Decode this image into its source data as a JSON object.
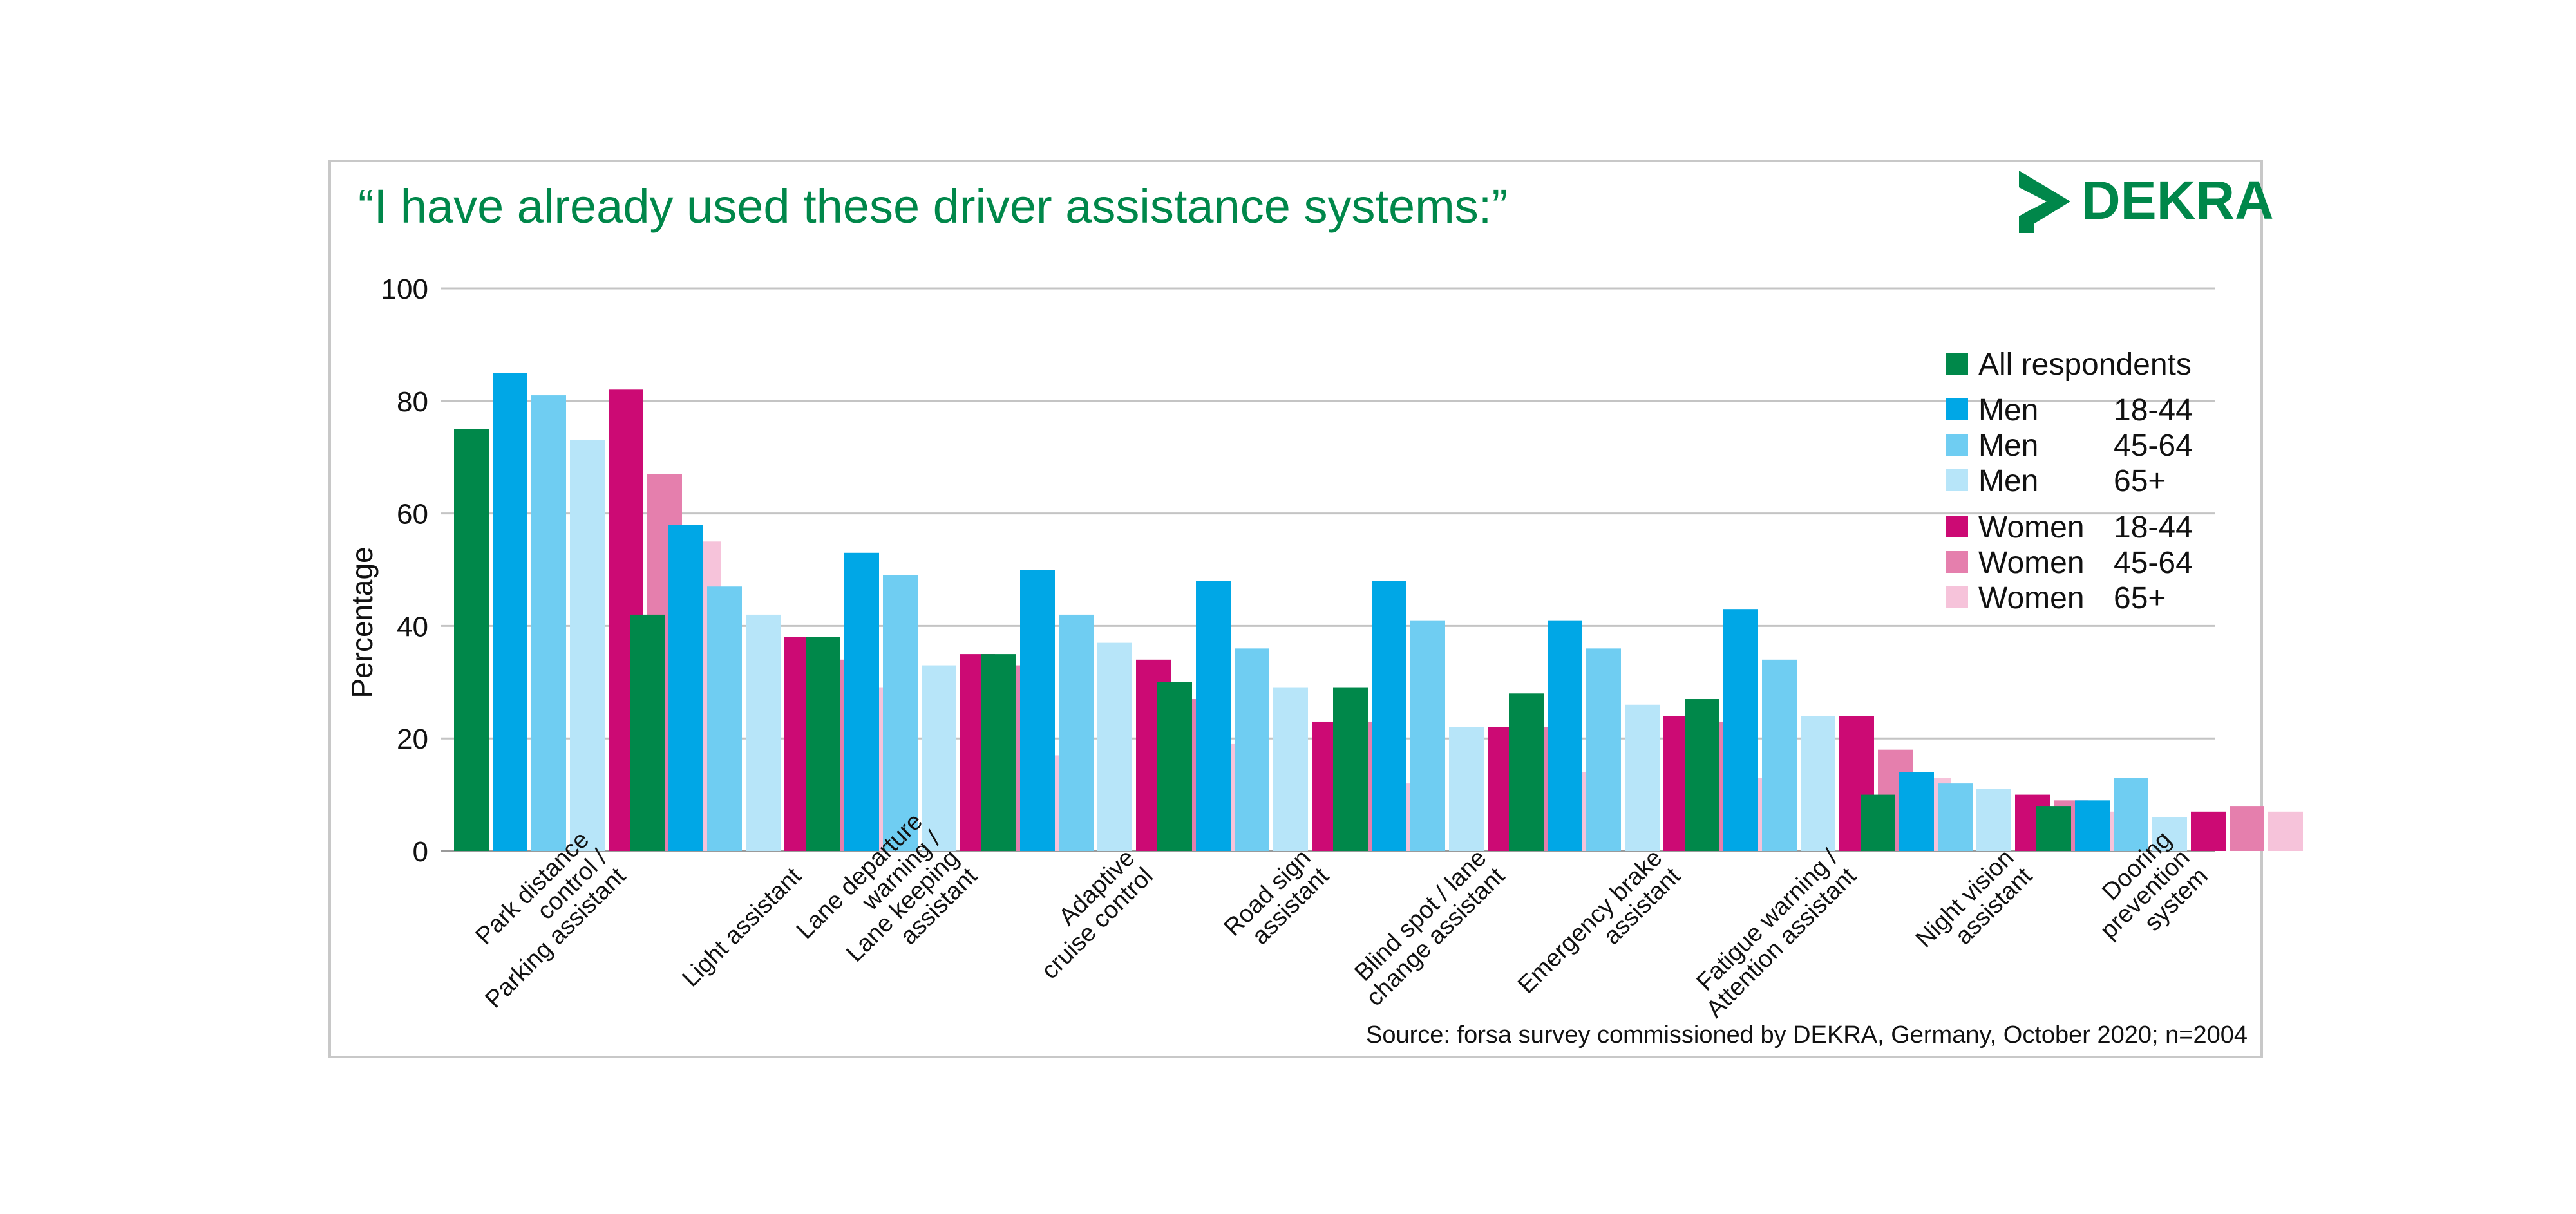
{
  "title": "“I have already used these driver assistance systems:”",
  "logo": {
    "text": "DEKRA",
    "color": "#00874a"
  },
  "source": "Source: forsa survey commissioned by DEKRA, Germany, October 2020; n=2004",
  "chart_data": {
    "type": "bar",
    "ylabel": "Percentage",
    "xlabel": "",
    "ylim": [
      0,
      100
    ],
    "yticks": [
      0,
      20,
      40,
      60,
      80,
      100
    ],
    "grid": true,
    "legend_position": "top-right",
    "categories": [
      [
        "Park distance",
        "control /",
        "Parking assistant"
      ],
      [
        "Light assistant"
      ],
      [
        "Lane departure",
        "warning /",
        "Lane keeping",
        "assistant"
      ],
      [
        "Adaptive",
        "cruise control"
      ],
      [
        "Road sign",
        "assistant"
      ],
      [
        "Blind spot / lane",
        "change assistant"
      ],
      [
        "Emergency brake",
        "assistant"
      ],
      [
        "Fatigue warning /",
        "Attention assistant"
      ],
      [
        "Night vision",
        "assistant"
      ],
      [
        "Dooring",
        "prevention",
        "system"
      ]
    ],
    "series": [
      {
        "name": "All respondents",
        "group": "",
        "color": "#00884a",
        "values": [
          75,
          42,
          38,
          35,
          30,
          29,
          28,
          27,
          10,
          8
        ]
      },
      {
        "name": "Men",
        "group": "18-44",
        "color": "#00a7e6",
        "values": [
          85,
          58,
          53,
          50,
          48,
          48,
          41,
          43,
          14,
          9
        ]
      },
      {
        "name": "Men",
        "group": "45-64",
        "color": "#6fcdf2",
        "values": [
          81,
          47,
          49,
          42,
          36,
          41,
          36,
          34,
          12,
          13
        ]
      },
      {
        "name": "Men",
        "group": "65+",
        "color": "#b7e5f9",
        "values": [
          73,
          42,
          33,
          37,
          29,
          22,
          26,
          24,
          11,
          6
        ]
      },
      {
        "name": "Women",
        "group": "18-44",
        "color": "#cc0a74",
        "values": [
          82,
          38,
          35,
          34,
          23,
          22,
          24,
          24,
          10,
          7
        ]
      },
      {
        "name": "Women",
        "group": "45-64",
        "color": "#e57fad",
        "values": [
          67,
          34,
          33,
          27,
          23,
          22,
          23,
          18,
          9,
          8
        ]
      },
      {
        "name": "Women",
        "group": "65+",
        "color": "#f6c3da",
        "values": [
          55,
          29,
          17,
          19,
          12,
          14,
          13,
          13,
          7,
          7
        ]
      }
    ]
  }
}
